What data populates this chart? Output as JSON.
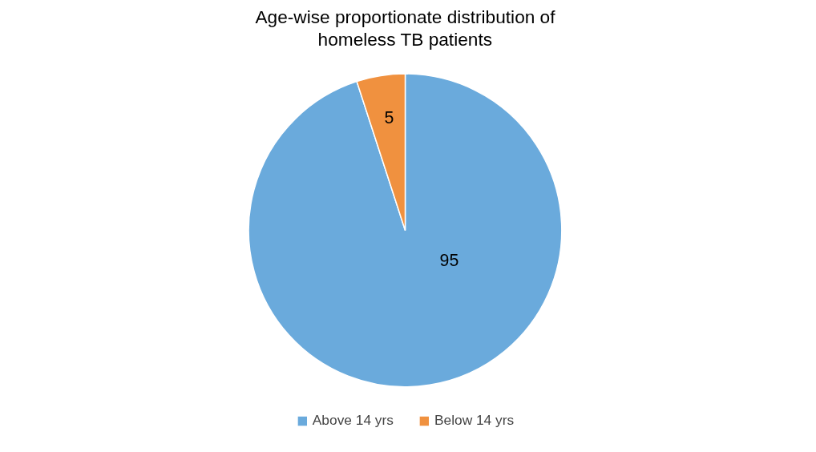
{
  "chart_data": {
    "type": "pie",
    "title": "Age-wise proportionate distribution of homeless TB patients",
    "categories": [
      "Above 14 yrs",
      "Below 14 yrs"
    ],
    "values": [
      95,
      5
    ],
    "colors": [
      "#6aaadc",
      "#f0913f"
    ],
    "data_labels": true,
    "legend": "bottom"
  }
}
